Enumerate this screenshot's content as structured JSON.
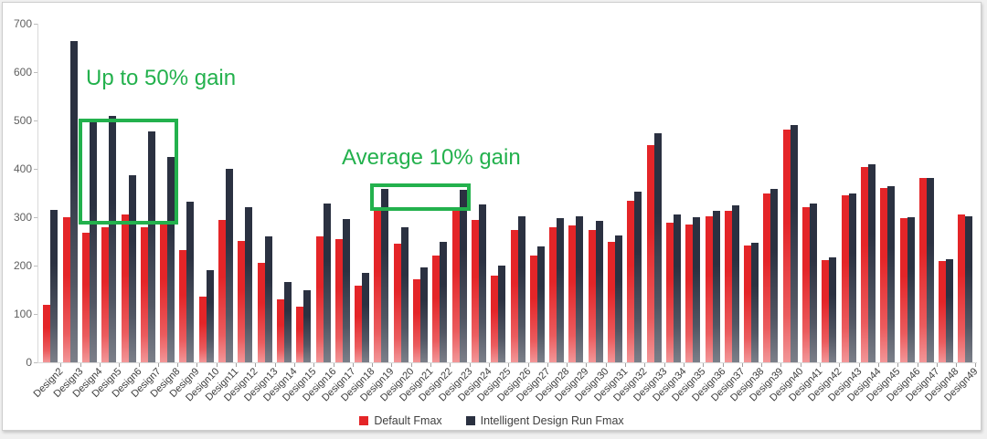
{
  "chart_data": {
    "type": "bar",
    "title": "",
    "xlabel": "",
    "ylabel": "",
    "categories": [
      "Design2",
      "Design3",
      "Design4",
      "Design5",
      "Design6",
      "Design7",
      "Design8",
      "Design9",
      "Design10",
      "Design11",
      "Design12",
      "Design13",
      "Design14",
      "Design15",
      "Design16",
      "Design17",
      "Design18",
      "Design19",
      "Design20",
      "Design21",
      "Design22",
      "Design23",
      "Design24",
      "Design25",
      "Design26",
      "Design27",
      "Design28",
      "Design29",
      "Design30",
      "Design31",
      "Design32",
      "Design33",
      "Design34",
      "Design35",
      "Design36",
      "Design37",
      "Design38",
      "Design39",
      "Design40",
      "Design41",
      "Design42",
      "Design43",
      "Design44",
      "Design45",
      "Design46",
      "Design47",
      "Design48",
      "Design49"
    ],
    "series": [
      {
        "name": "Default Fmax",
        "color": "#e42528",
        "values": [
          118,
          300,
          267,
          280,
          305,
          280,
          288,
          232,
          136,
          294,
          251,
          205,
          131,
          116,
          260,
          254,
          159,
          313,
          246,
          172,
          221,
          319,
          295,
          179,
          274,
          220,
          280,
          283,
          274,
          249,
          334,
          449,
          288,
          285,
          301,
          313,
          241,
          349,
          482,
          320,
          212,
          346,
          403,
          361,
          298,
          381,
          209,
          305
        ]
      },
      {
        "name": "Intelligent Design Run Fmax",
        "color": "#2b3141",
        "values": [
          315,
          665,
          500,
          510,
          387,
          477,
          425,
          333,
          190,
          400,
          320,
          260,
          166,
          150,
          328,
          296,
          185,
          359,
          279,
          197,
          249,
          357,
          326,
          200,
          302,
          239,
          299,
          302,
          292,
          262,
          353,
          474,
          305,
          300,
          313,
          325,
          248,
          359,
          491,
          329,
          217,
          350,
          410,
          365,
          300,
          381,
          213,
          301
        ]
      }
    ],
    "ylim": [
      0,
      700
    ],
    "y_axis": {
      "ticks": [
        0,
        100,
        200,
        300,
        400,
        500,
        600,
        700
      ]
    },
    "grid": "none",
    "legend_position": "bottom-center",
    "annotations": [
      {
        "text": "Up to 50% gain",
        "color": "#23b14d",
        "box_from_category": "Design4",
        "box_to_category": "Design8",
        "box_value_top": 504,
        "box_value_bottom": 285
      },
      {
        "text": "Average 10% gain",
        "color": "#23b14d",
        "box_from_category": "Design19",
        "box_to_category": "Design23",
        "box_value_top": 370,
        "box_value_bottom": 314
      }
    ]
  }
}
